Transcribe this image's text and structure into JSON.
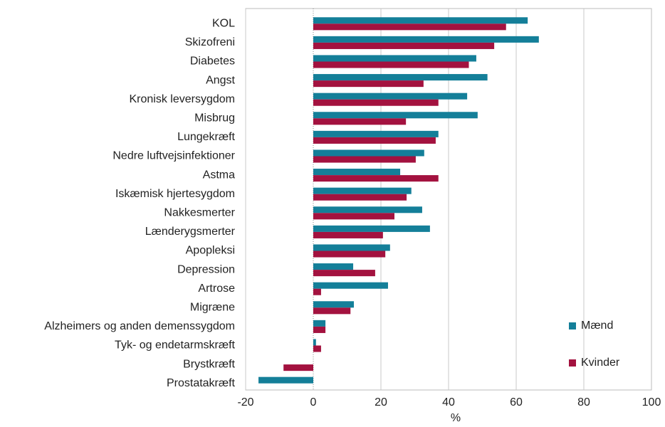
{
  "chart_data": {
    "type": "hbar",
    "x_label": "%",
    "categories": [
      "KOL",
      "Skizofreni",
      "Diabetes",
      "Angst ",
      "Kronisk leversygdom",
      "Misbrug",
      "Lungekræft",
      "Nedre luftvejsinfektioner",
      "Astma",
      "Iskæmisk hjertesygdom",
      "Nakkesmerter",
      "Lænderygsmerter",
      "Apopleksi",
      "Depression",
      "Artrose",
      "Migræne",
      "Alzheimers og anden demenssygdom",
      "Tyk- og endetarmskræft",
      "Brystkræft",
      "Prostatakræft"
    ],
    "series": [
      {
        "name": "Mænd",
        "color": "#147f99",
        "values": [
          63.4,
          66.7,
          48.2,
          51.5,
          45.5,
          48.6,
          37,
          32.8,
          25.7,
          29,
          32.2,
          34.5,
          22.7,
          11.8,
          22.1,
          12,
          3.6,
          0.8,
          null,
          -16.2
        ]
      },
      {
        "name": "Kvinder",
        "color": "#a3123f",
        "values": [
          57,
          53.5,
          46,
          32.6,
          37,
          27.4,
          36.2,
          30.3,
          37,
          27.6,
          24,
          20.6,
          21.3,
          18.3,
          2.3,
          11,
          3.6,
          2.3,
          -8.8,
          null
        ]
      }
    ],
    "xlim": [
      -20,
      100
    ],
    "xticks": [
      -20,
      0,
      20,
      40,
      60,
      80,
      100
    ],
    "grid": true,
    "legend": "lower right"
  }
}
